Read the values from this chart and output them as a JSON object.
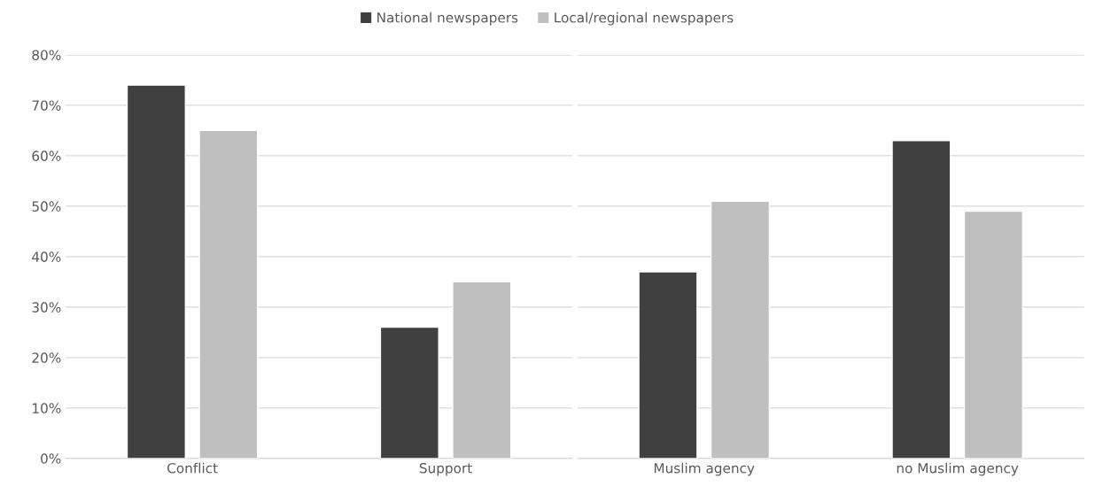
{
  "chart_data": [
    {
      "type": "bar",
      "categories": [
        "Conflict",
        "Support"
      ],
      "legend": "top",
      "grid": "y",
      "series": [
        {
          "name": "National newspapers",
          "color": "#404040",
          "values": [
            74,
            26
          ]
        },
        {
          "name": "Local/regional newspapers",
          "color": "#bfbfbf",
          "values": [
            65,
            35
          ]
        }
      ],
      "ylim": [
        0,
        80
      ],
      "yticks": [
        {
          "value": 0,
          "label": "0%"
        },
        {
          "value": 10,
          "label": "10%"
        },
        {
          "value": 20,
          "label": "20%"
        },
        {
          "value": 30,
          "label": "30%"
        },
        {
          "value": 40,
          "label": "40%"
        },
        {
          "value": 50,
          "label": "50%"
        },
        {
          "value": 60,
          "label": "60%"
        },
        {
          "value": 70,
          "label": "70%"
        },
        {
          "value": 80,
          "label": "80%"
        }
      ]
    },
    {
      "type": "bar",
      "categories": [
        "Muslim agency",
        "no Muslim agency"
      ],
      "grid": "y",
      "tick_labels": "x",
      "series": [
        {
          "color": "#404040",
          "values": [
            37,
            63
          ]
        },
        {
          "color": "#bfbfbf",
          "values": [
            51,
            49
          ]
        }
      ],
      "ylim": [
        0,
        80
      ],
      "yticks": [
        0,
        10,
        20,
        30,
        40,
        50,
        60,
        70,
        80
      ]
    }
  ]
}
